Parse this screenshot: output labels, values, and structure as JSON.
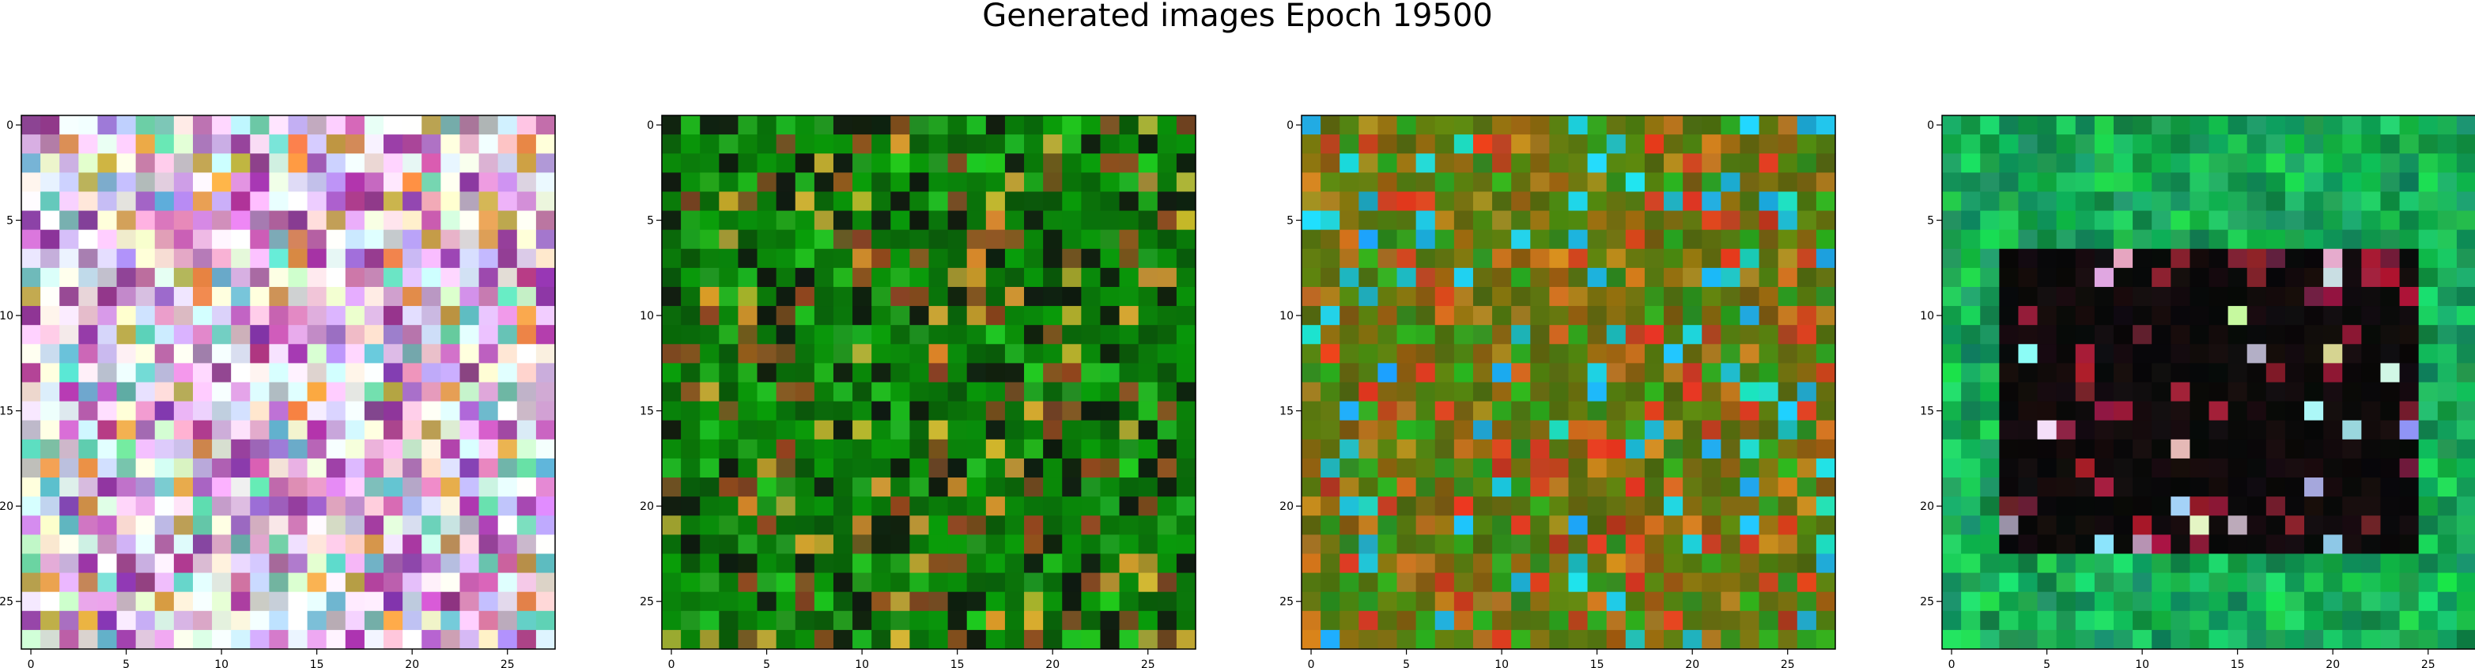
{
  "figure": {
    "suptitle": "Generated images Epoch 19500"
  },
  "chart_data": {
    "type": "heatmap",
    "title": "Generated images Epoch 19500",
    "grid": false,
    "panels": [
      {
        "kind": "rgb-image",
        "rows": 28,
        "cols": 28,
        "dominant_palette": [
          "#ffffff",
          "#e8d8f0",
          "#d8a8e0",
          "#c070c0",
          "#a040a0",
          "#70d0c0",
          "#e0a050"
        ],
        "xticks": [
          0,
          5,
          10,
          15,
          20,
          25
        ],
        "yticks": [
          0,
          5,
          10,
          15,
          20,
          25
        ]
      },
      {
        "kind": "rgb-image",
        "rows": 28,
        "cols": 28,
        "dominant_palette": [
          "#0a8a0a",
          "#0a6a0a",
          "#20b020",
          "#805020",
          "#102010",
          "#c0a030"
        ],
        "xticks": [
          0,
          5,
          10,
          15,
          20,
          25
        ],
        "yticks": [
          0,
          5,
          10,
          15,
          20,
          25
        ]
      },
      {
        "kind": "rgb-image",
        "rows": 28,
        "cols": 28,
        "dominant_palette": [
          "#5a7a10",
          "#8a6a10",
          "#c08020",
          "#30a020",
          "#20c8e0",
          "#d04020"
        ],
        "xticks": [
          0,
          5,
          10,
          15,
          20,
          25
        ],
        "yticks": [
          0,
          5,
          10,
          15,
          20,
          25
        ]
      },
      {
        "kind": "rgb-image",
        "rows": 28,
        "cols": 28,
        "dominant_palette": [
          "#10a050",
          "#20c060",
          "#0a0a0a",
          "#180e10",
          "#a02040",
          "#e8e8e8"
        ],
        "xticks": [
          0,
          5,
          10,
          15,
          20,
          25
        ],
        "yticks": [
          0,
          5,
          10,
          15,
          20,
          25
        ]
      }
    ]
  }
}
